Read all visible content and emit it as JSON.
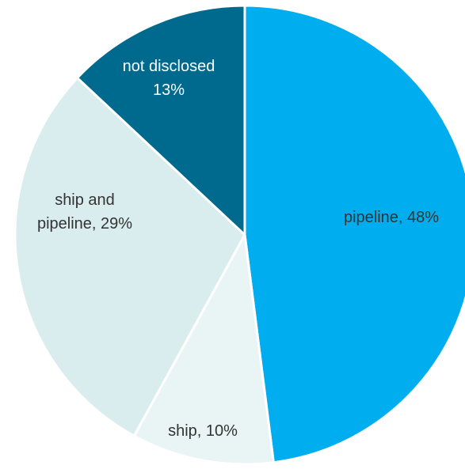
{
  "chart_data": {
    "type": "pie",
    "title": "",
    "slices": [
      {
        "label_lines": [
          "pipeline, 48%"
        ],
        "value": 48,
        "color": "#00AEEF",
        "text_color": "#333333"
      },
      {
        "label_lines": [
          "ship, 10%"
        ],
        "value": 10,
        "color": "#E9F4F4",
        "text_color": "#333333"
      },
      {
        "label_lines": [
          "ship and",
          "pipeline, 29%"
        ],
        "value": 29,
        "color": "#DAEDEE",
        "text_color": "#333333"
      },
      {
        "label_lines": [
          "not disclosed",
          "13%"
        ],
        "value": 13,
        "color": "#006A8E",
        "text_color": "#FFFFFF"
      }
    ]
  }
}
